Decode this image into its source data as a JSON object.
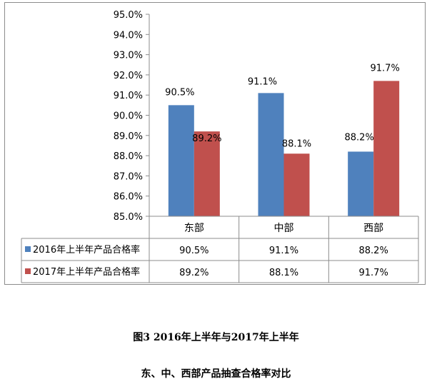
{
  "chart_data": {
    "type": "bar",
    "categories": [
      "东部",
      "中部",
      "西部"
    ],
    "series": [
      {
        "name": "2016年上半年产品合格率",
        "values": [
          90.5,
          91.1,
          88.2
        ],
        "labels": [
          "90.5%",
          "91.1%",
          "88.2%"
        ],
        "color": "#4f81bd"
      },
      {
        "name": "2017年上半年产品合格率",
        "values": [
          89.2,
          88.1,
          91.7
        ],
        "labels": [
          "89.2%",
          "88.1%",
          "91.7%"
        ],
        "color": "#c0504d"
      }
    ],
    "ylim": [
      85.0,
      95.0
    ],
    "yticks": [
      "85.0%",
      "86.0%",
      "87.0%",
      "88.0%",
      "89.0%",
      "90.0%",
      "91.0%",
      "92.0%",
      "93.0%",
      "94.0%",
      "95.0%"
    ],
    "grid": false,
    "legend": "data-table-below",
    "title": "",
    "xlabel": "",
    "ylabel": ""
  },
  "caption": {
    "line1": "图3  2016年上半年与2017年上半年",
    "line2": "东、中、西部产品抽查合格率对比"
  }
}
